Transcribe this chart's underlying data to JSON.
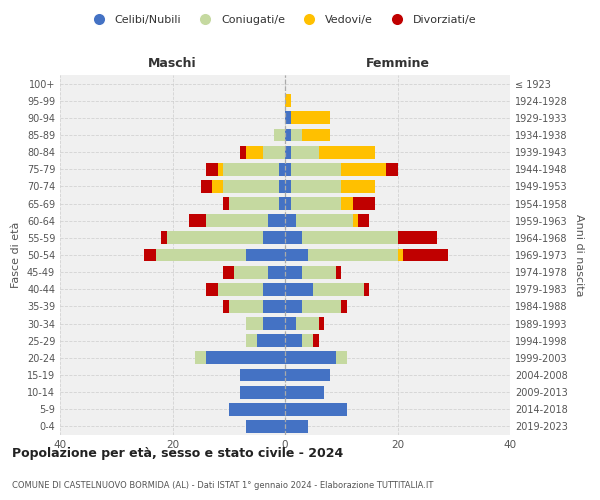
{
  "age_groups": [
    "0-4",
    "5-9",
    "10-14",
    "15-19",
    "20-24",
    "25-29",
    "30-34",
    "35-39",
    "40-44",
    "45-49",
    "50-54",
    "55-59",
    "60-64",
    "65-69",
    "70-74",
    "75-79",
    "80-84",
    "85-89",
    "90-94",
    "95-99",
    "100+"
  ],
  "birth_years": [
    "2019-2023",
    "2014-2018",
    "2009-2013",
    "2004-2008",
    "1999-2003",
    "1994-1998",
    "1989-1993",
    "1984-1988",
    "1979-1983",
    "1974-1978",
    "1969-1973",
    "1964-1968",
    "1959-1963",
    "1954-1958",
    "1949-1953",
    "1944-1948",
    "1939-1943",
    "1934-1938",
    "1929-1933",
    "1924-1928",
    "≤ 1923"
  ],
  "maschi": {
    "celibi": [
      7,
      10,
      8,
      8,
      14,
      5,
      4,
      4,
      4,
      3,
      7,
      4,
      3,
      1,
      1,
      1,
      0,
      0,
      0,
      0,
      0
    ],
    "coniugati": [
      0,
      0,
      0,
      0,
      2,
      2,
      3,
      6,
      8,
      6,
      16,
      17,
      11,
      9,
      10,
      10,
      4,
      2,
      0,
      0,
      0
    ],
    "vedovi": [
      0,
      0,
      0,
      0,
      0,
      0,
      0,
      0,
      0,
      0,
      0,
      0,
      0,
      0,
      2,
      1,
      3,
      0,
      0,
      0,
      0
    ],
    "divorziati": [
      0,
      0,
      0,
      0,
      0,
      0,
      0,
      1,
      2,
      2,
      2,
      1,
      3,
      1,
      2,
      2,
      1,
      0,
      0,
      0,
      0
    ]
  },
  "femmine": {
    "nubili": [
      4,
      11,
      7,
      8,
      9,
      3,
      2,
      3,
      5,
      3,
      4,
      3,
      2,
      1,
      1,
      1,
      1,
      1,
      1,
      0,
      0
    ],
    "coniugate": [
      0,
      0,
      0,
      0,
      2,
      2,
      4,
      7,
      9,
      6,
      16,
      17,
      10,
      9,
      9,
      9,
      5,
      2,
      0,
      0,
      0
    ],
    "vedove": [
      0,
      0,
      0,
      0,
      0,
      0,
      0,
      0,
      0,
      0,
      1,
      0,
      1,
      2,
      6,
      8,
      10,
      5,
      7,
      1,
      0
    ],
    "divorziate": [
      0,
      0,
      0,
      0,
      0,
      1,
      1,
      1,
      1,
      1,
      8,
      7,
      2,
      4,
      0,
      2,
      0,
      0,
      0,
      0,
      0
    ]
  },
  "colors": {
    "celibi": "#4472c4",
    "coniugati": "#c5d9a0",
    "vedovi": "#ffc000",
    "divorziati": "#c00000"
  },
  "title": "Popolazione per età, sesso e stato civile - 2024",
  "subtitle": "COMUNE DI CASTELNUOVO BORMIDA (AL) - Dati ISTAT 1° gennaio 2024 - Elaborazione TUTTITALIA.IT",
  "xlim": 40,
  "bg_color": "#f0f0f0"
}
